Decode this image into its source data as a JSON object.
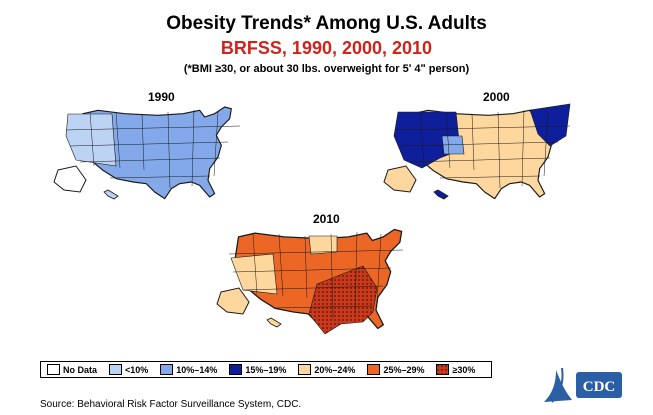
{
  "title": "Obesity Trends* Among U.S. Adults",
  "subtitle": "BRFSS, 1990, 2000, 2010",
  "note": "(*BMI ≥30, or about 30 lbs. overweight for 5ʹ 4ʺ person)",
  "maps": [
    {
      "year": "1990",
      "fill": "#84a9ea"
    },
    {
      "year": "2000",
      "fill": "#0f1e9b"
    },
    {
      "year": "2010",
      "fill": "#ec6726"
    }
  ],
  "legend": [
    {
      "label": "No Data",
      "color": "#ffffff"
    },
    {
      "label": "<10%",
      "color": "#bcd3f4"
    },
    {
      "label": "10%–14%",
      "color": "#84a9ea"
    },
    {
      "label": "15%–19%",
      "color": "#0f1e9b"
    },
    {
      "label": "20%–24%",
      "color": "#fdd79d"
    },
    {
      "label": "25%–29%",
      "color": "#ec6726"
    },
    {
      "label": "≥30%",
      "color": "#b73019"
    }
  ],
  "source": "Source: Behavioral Risk Factor Surveillance System, CDC.",
  "logo_text": "CDC"
}
